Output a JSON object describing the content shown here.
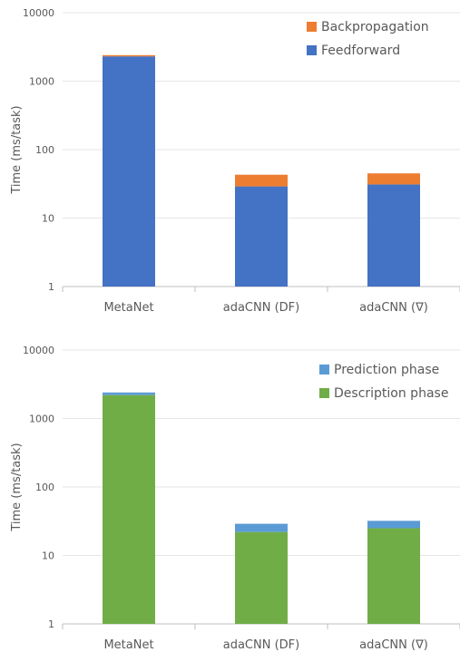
{
  "chart_data": [
    {
      "type": "bar",
      "stacked": true,
      "y_scale": "log",
      "ylabel": "Time (ms/task)",
      "ylim": [
        1,
        10000
      ],
      "yticks": [
        "1",
        "10",
        "100",
        "1000",
        "10000"
      ],
      "categories": [
        "MetaNet",
        "adaCNN (DF)",
        "adaCNN (∇)"
      ],
      "legend_position": "top-right",
      "series": [
        {
          "name": "Feedforward",
          "color": "#4472C4",
          "values": [
            2300,
            29,
            31
          ]
        },
        {
          "name": "Backpropagation",
          "color": "#ED7D31",
          "values": [
            100,
            14,
            14
          ]
        }
      ]
    },
    {
      "type": "bar",
      "stacked": true,
      "y_scale": "log",
      "ylabel": "Time (ms/task)",
      "ylim": [
        1,
        10000
      ],
      "yticks": [
        "1",
        "10",
        "100",
        "1000",
        "10000"
      ],
      "categories": [
        "MetaNet",
        "adaCNN (DF)",
        "adaCNN (∇)"
      ],
      "legend_position": "top-right",
      "series": [
        {
          "name": "Description phase",
          "color": "#70AD47",
          "values": [
            2200,
            22,
            25
          ]
        },
        {
          "name": "Prediction phase",
          "color": "#5B9BD5",
          "values": [
            200,
            7,
            7
          ]
        }
      ]
    }
  ]
}
